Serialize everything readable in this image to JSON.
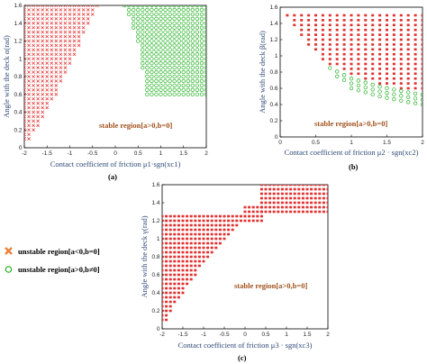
{
  "legend": {
    "unstable_neg": "unstable region[a<0,b=0]",
    "unstable_pos": "unstable region[a>0,b≠0]",
    "colors": {
      "unstable_neg": "#e03030",
      "unstable_pos": "#22b022"
    }
  },
  "chart_data": [
    {
      "type": "scatter",
      "panel_label": "(a)",
      "xlabel": "Contact coefficient of friction μ1·sgn(xc1)",
      "ylabel": "Angle with the deck α(rad)",
      "annotation": "stable region[a>0,b=0]",
      "xlim": [
        -2,
        2
      ],
      "ylim": [
        0,
        1.6
      ],
      "xticks": [
        "-2",
        "-1.5",
        "-1",
        "-0.5",
        "0",
        "0.5",
        "1",
        "1.5",
        "2"
      ],
      "yticks": [
        "0",
        "0.2",
        "0.4",
        "0.6",
        "0.8",
        "1",
        "1.2",
        "1.4",
        "1.6"
      ],
      "series": [
        {
          "name": "unstable region[a<0,b=0]",
          "marker": "x",
          "color": "#e03030",
          "region": {
            "y_grid": [
              0.1,
              1.6,
              0.05
            ],
            "x_step": 0.1,
            "boundary_y": [
              0.1,
              0.2,
              0.4,
              0.6,
              0.8,
              1.0,
              1.2,
              1.4,
              1.6
            ],
            "boundary_xmax": [
              -1.9,
              -1.75,
              -1.55,
              -1.3,
              -1.15,
              -0.95,
              -0.75,
              -0.6,
              -0.4
            ]
          }
        },
        {
          "name": "unstable region[a>0,b≠0]",
          "marker": "o",
          "color": "#22b022",
          "region": {
            "y_grid": [
              0.6,
              1.6,
              0.05
            ],
            "x_step": 0.1,
            "boundary_y": [
              0.6,
              0.9,
              1.2,
              1.4,
              1.6
            ],
            "boundary_xmin": [
              0.7,
              0.6,
              0.5,
              0.35,
              0.2
            ]
          }
        }
      ]
    },
    {
      "type": "scatter",
      "panel_label": "(b)",
      "xlabel": "Contact coefficient of friction μ2 · sgn(xc2)",
      "ylabel": "Angle with the deck β(rad)",
      "annotation": "stable region[a>0,b=0]",
      "xlim": [
        0,
        2
      ],
      "ylim": [
        0,
        1.6
      ],
      "xticks": [
        "0",
        "0.5",
        "1",
        "1.5",
        "2"
      ],
      "yticks": [
        "0",
        "0.2",
        "0.4",
        "0.6",
        "0.8",
        "1",
        "1.2",
        "1.4",
        "1.6"
      ],
      "series": [
        {
          "name": "unstable region[a<0,b=0]",
          "marker": "square",
          "color": "#e03030",
          "region": {
            "x_grid": [
              0.1,
              2.0,
              0.1
            ],
            "y_step": 0.06,
            "boundary_x": [
              0.1,
              0.2,
              0.4,
              0.6,
              0.8,
              1.0,
              1.2,
              1.4,
              1.6,
              1.8,
              2.0
            ],
            "boundary_ymin": [
              1.5,
              1.35,
              1.1,
              0.95,
              0.85,
              0.78,
              0.72,
              0.66,
              0.62,
              0.58,
              0.55
            ],
            "ymax": 1.5
          }
        },
        {
          "name": "unstable region[a>0,b≠0]",
          "marker": "o",
          "color": "#22b022",
          "region": {
            "x_grid": [
              0.7,
              2.0,
              0.1
            ],
            "y_step": 0.06,
            "boundary_x": [
              0.7,
              1.0,
              1.4,
              1.8,
              2.0
            ],
            "boundary_ymin": [
              0.8,
              0.6,
              0.5,
              0.42,
              0.35
            ],
            "boundary_ymax": [
              0.85,
              0.72,
              0.62,
              0.55,
              0.52
            ]
          }
        }
      ]
    },
    {
      "type": "scatter",
      "panel_label": "(c)",
      "xlabel": "Contact coefficient of friction μ3 · sgn(xc3)",
      "ylabel": "Angle with the deck γ(rad)",
      "annotation": "stable region[a>0,b=0]",
      "xlim": [
        -2,
        2
      ],
      "ylim": [
        0,
        1.6
      ],
      "xticks": [
        "-2",
        "-1.5",
        "-1",
        "-0.5",
        "0",
        "0.5",
        "1",
        "1.5",
        "2"
      ],
      "yticks": [
        "0",
        "0.2",
        "0.4",
        "0.6",
        "0.8",
        "1",
        "1.2",
        "1.4",
        "1.6"
      ],
      "series": [
        {
          "name": "unstable region[a<0,b=0]",
          "marker": "square",
          "color": "#e03030",
          "region": {
            "y_grid": [
              0.1,
              1.6,
              0.05
            ],
            "x_step": 0.1,
            "left_boundary_y": [
              0.1,
              0.2,
              0.4,
              0.6,
              0.8,
              1.0,
              1.2,
              1.25
            ],
            "left_boundary_xmax": [
              -1.9,
              -1.8,
              -1.5,
              -1.2,
              -0.9,
              -0.5,
              -0.1,
              0.0
            ],
            "right_block": {
              "x": [
                0.4,
                2.0
              ],
              "y": [
                1.3,
                1.6
              ]
            },
            "step_block": {
              "x": [
                0.0,
                0.4
              ],
              "y": [
                1.2,
                1.35
              ]
            }
          }
        }
      ]
    }
  ]
}
